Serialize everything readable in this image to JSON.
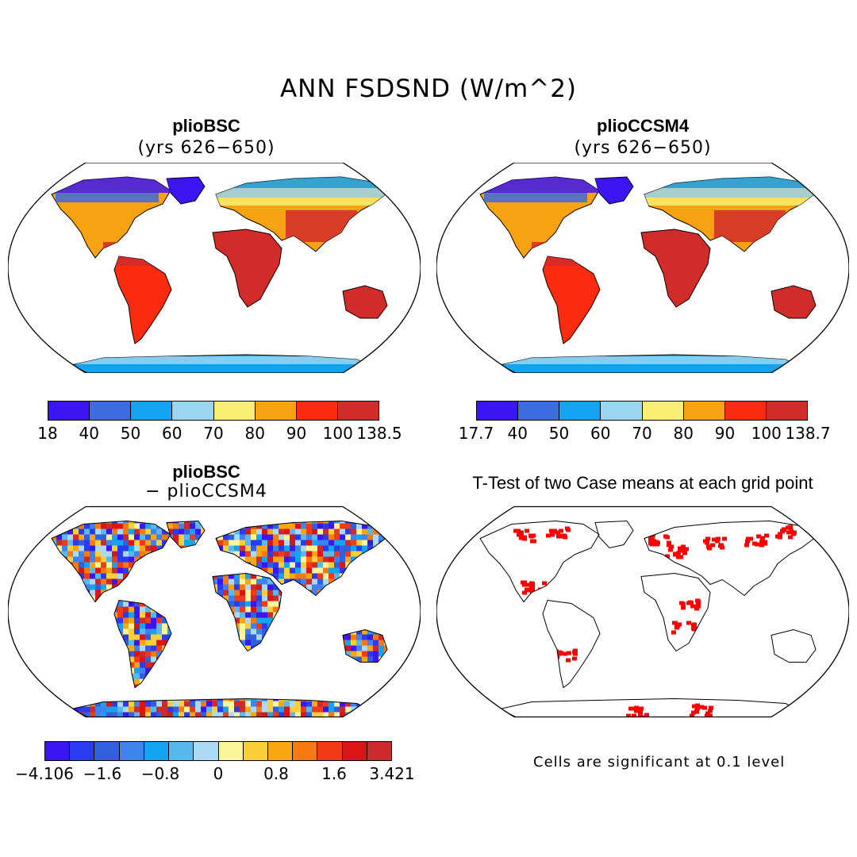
{
  "title": "ANN FSDSND (W/m^2)",
  "panels": [
    {
      "title": "plioBSC",
      "subtitle": "(yrs 626−650)",
      "colorbar": {
        "colors": [
          "#3b16f2",
          "#3e6bdf",
          "#13a3f0",
          "#9bd5ef",
          "#f8ee74",
          "#f7a211",
          "#fb2b10",
          "#d22c2a"
        ],
        "labels": [
          "18",
          "40",
          "50",
          "60",
          "70",
          "80",
          "90",
          "100",
          "138.5"
        ]
      }
    },
    {
      "title": "plioCCSM4",
      "subtitle": "(yrs 626−650)",
      "colorbar": {
        "colors": [
          "#3b16f2",
          "#3e6bdf",
          "#13a3f0",
          "#9bd5ef",
          "#f8ee74",
          "#f7a211",
          "#fb2b10",
          "#d22c2a"
        ],
        "labels": [
          "17.7",
          "40",
          "50",
          "60",
          "70",
          "80",
          "90",
          "100",
          "138.7"
        ]
      }
    },
    {
      "title": "plioBSC",
      "subtitle": "− plioCCSM4",
      "colorbar": {
        "colors": [
          "#3b16f2",
          "#2a3cf0",
          "#3060e0",
          "#3f83ec",
          "#15a3f4",
          "#59b9ef",
          "#a9d9f3",
          "#fdf59a",
          "#fbcf3a",
          "#f8a712",
          "#f77910",
          "#f23a16",
          "#dd1414",
          "#cc2b2b"
        ],
        "labels": [
          "−4.106",
          "−1.6",
          "−0.8",
          "0",
          "0.8",
          "1.6",
          "3.421"
        ]
      }
    },
    {
      "title": "T-Test of two Case means at each grid point",
      "note": "Cells are significant at 0.1 level",
      "significant_color": "#ff0000"
    }
  ],
  "map_colors": {
    "ocean": "#ffffff",
    "coast": "#000000"
  }
}
